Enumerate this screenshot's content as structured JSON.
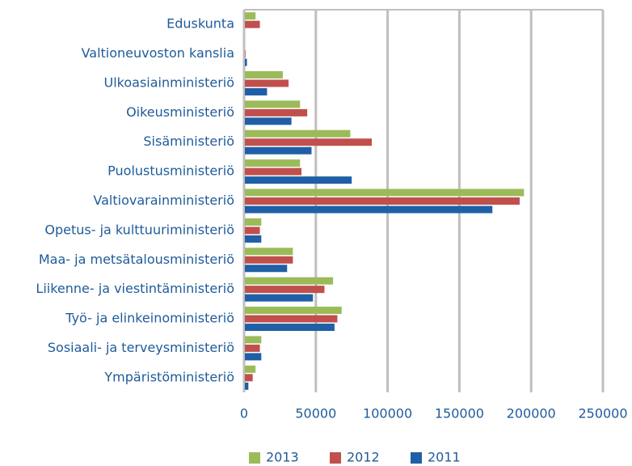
{
  "chart_data": {
    "type": "bar",
    "orientation": "horizontal",
    "categories": [
      "Eduskunta",
      "Valtioneuvoston kanslia",
      "Ulkoasiainministeriö",
      "Oikeusministeriö",
      "Sisäministeriö",
      "Puolustusministeriö",
      "Valtiovarainministeriö",
      "Opetus- ja kulttuuriministeriö",
      "Maa- ja metsätalousministeriö",
      "Liikenne- ja viestintäministeriö",
      "Työ- ja elinkeinoministeriö",
      "Sosiaali- ja terveysministeriö",
      "Ympäristöministeriö"
    ],
    "series": [
      {
        "name": "2013",
        "color": "#9bbb59",
        "values": [
          8000,
          0,
          27000,
          39000,
          74000,
          39000,
          195000,
          12000,
          34000,
          62000,
          68000,
          12000,
          8000
        ]
      },
      {
        "name": "2012",
        "color": "#c0504d",
        "values": [
          11000,
          1000,
          31000,
          44000,
          89000,
          40000,
          192000,
          11000,
          34000,
          56000,
          65000,
          11000,
          6000
        ]
      },
      {
        "name": "2011",
        "color": "#1f5fa6",
        "values": [
          0,
          2000,
          16000,
          33000,
          47000,
          75000,
          173000,
          12000,
          30000,
          48000,
          63000,
          12000,
          3000
        ]
      }
    ],
    "xlim": [
      0,
      250000
    ],
    "xticks": [
      0,
      50000,
      100000,
      150000,
      200000,
      250000
    ],
    "grid": true,
    "legend": "bottom"
  }
}
